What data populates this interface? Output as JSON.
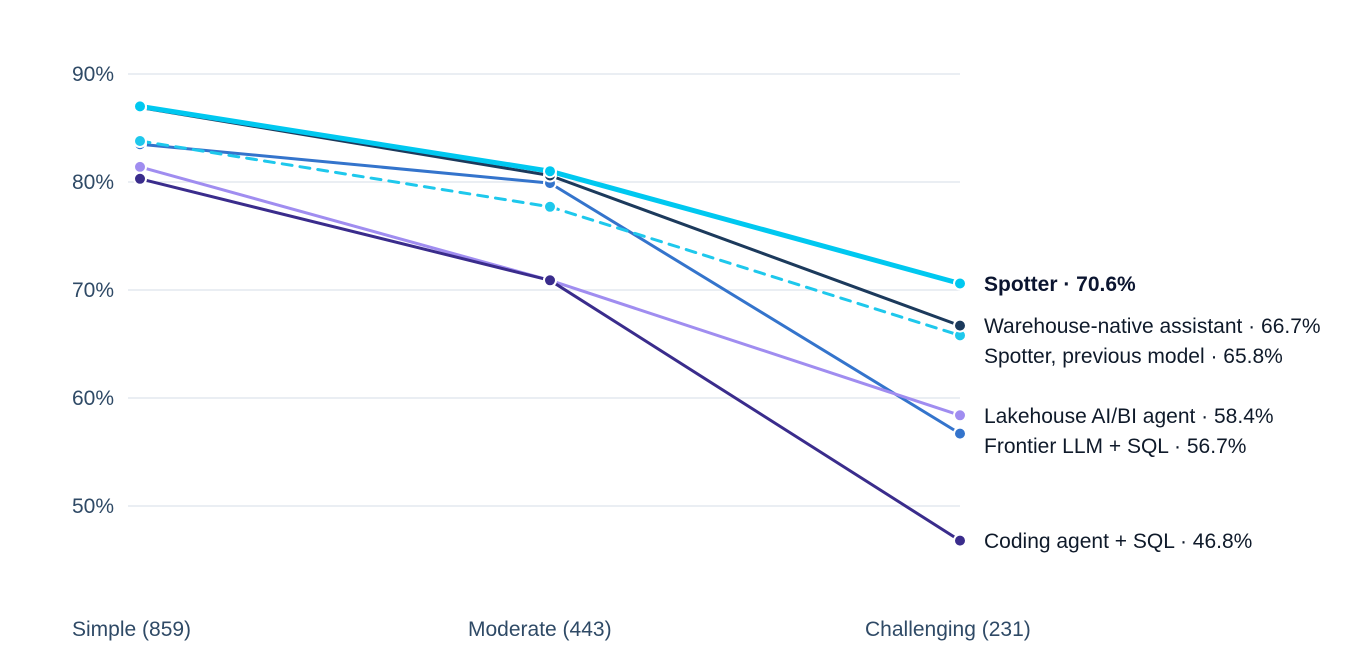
{
  "chart_data": {
    "type": "line",
    "title": "",
    "xlabel": "",
    "ylabel": "",
    "categories": [
      "Simple (859)",
      "Moderate (443)",
      "Challenging (231)"
    ],
    "ylim": [
      40,
      92
    ],
    "yticks": [
      50,
      60,
      70,
      80,
      90
    ],
    "ytick_labels": [
      "50%",
      "60%",
      "70%",
      "80%",
      "90%"
    ],
    "grid": true,
    "legend": "none",
    "series": [
      {
        "label": "Spotter · 70.6%",
        "values": [
          87.0,
          81.0,
          70.6
        ],
        "color": "#00c8f0",
        "dashed": false,
        "emphasis": true
      },
      {
        "label": "Warehouse-native assistant · 66.7%",
        "values": [
          86.9,
          80.6,
          66.7
        ],
        "color": "#1c3a5c",
        "dashed": false,
        "emphasis": false
      },
      {
        "label": "Spotter, previous model · 65.8%",
        "values": [
          83.8,
          77.7,
          65.8
        ],
        "color": "#1ec8ec",
        "dashed": true,
        "emphasis": false
      },
      {
        "label": "Lakehouse AI/BI agent · 58.4%",
        "values": [
          81.4,
          70.9,
          58.4
        ],
        "color": "#a08df0",
        "dashed": false,
        "emphasis": false
      },
      {
        "label": "Frontier LLM + SQL · 56.7%",
        "values": [
          83.5,
          79.9,
          56.7
        ],
        "color": "#3474cc",
        "dashed": false,
        "emphasis": false
      },
      {
        "label": "Coding agent + SQL · 46.8%",
        "values": [
          80.3,
          70.9,
          46.8
        ],
        "color": "#3a2c8c",
        "dashed": false,
        "emphasis": false
      }
    ]
  }
}
